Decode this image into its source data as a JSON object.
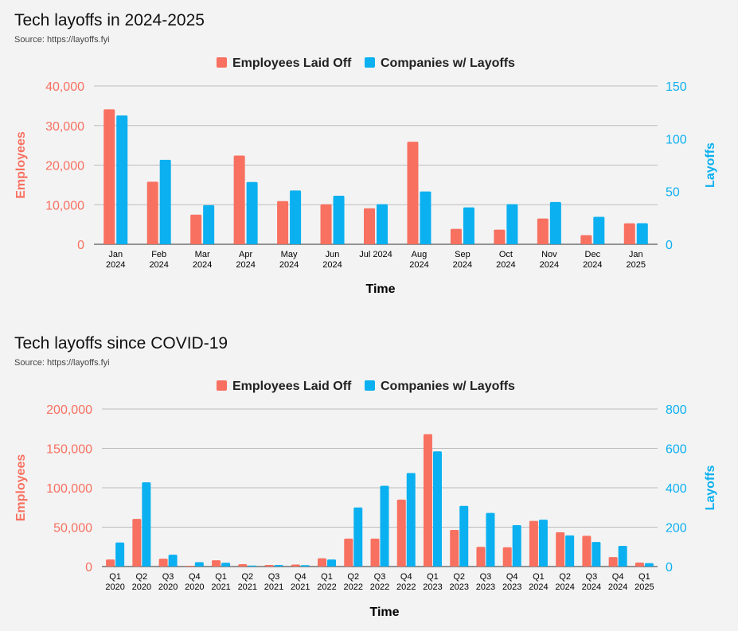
{
  "chart_data": [
    {
      "type": "bar",
      "title": "Tech layoffs in 2024-2025",
      "subtitle": "Source: https://layoffs.fyi",
      "xlabel": "Time",
      "ylabel_left": "Employees",
      "ylabel_right": "Layoffs",
      "ylim_left": [
        0,
        40000
      ],
      "ylim_right": [
        0,
        150
      ],
      "yticks_left": [
        "0",
        "10,000",
        "20,000",
        "30,000",
        "40,000"
      ],
      "yticks_right": [
        "0",
        "50",
        "100",
        "150"
      ],
      "legend_position": "top-center",
      "grid": true,
      "categories": [
        "Jan|2024",
        "Feb|2024",
        "Mar|2024",
        "Apr|2024",
        "May|2024",
        "Jun|2024",
        "Jul 2024",
        "Aug|2024",
        "Sep|2024",
        "Oct|2024",
        "Nov|2024",
        "Dec|2024",
        "Jan|2025"
      ],
      "series": [
        {
          "name": "Employees Laid Off",
          "axis": "left",
          "color": "#f87060",
          "values": [
            34100,
            15800,
            7500,
            22400,
            10900,
            10100,
            9100,
            25900,
            3900,
            3700,
            6500,
            2300,
            5300
          ]
        },
        {
          "name": "Companies w/ Layoffs",
          "axis": "right",
          "color": "#0bb0f0",
          "values": [
            122,
            80,
            37,
            59,
            51,
            46,
            38,
            50,
            35,
            38,
            40,
            26,
            20
          ]
        }
      ]
    },
    {
      "type": "bar",
      "title": "Tech layoffs since COVID-19",
      "subtitle": "Source: https://layoffs.fyi",
      "xlabel": "Time",
      "ylabel_left": "Employees",
      "ylabel_right": "Layoffs",
      "ylim_left": [
        0,
        200000
      ],
      "ylim_right": [
        0,
        800
      ],
      "yticks_left": [
        "0",
        "50,000",
        "100,000",
        "150,000",
        "200,000"
      ],
      "yticks_right": [
        "0",
        "200",
        "400",
        "600",
        "800"
      ],
      "legend_position": "top-center",
      "grid": true,
      "categories": [
        "Q1|2020",
        "Q2|2020",
        "Q3|2020",
        "Q4|2020",
        "Q1|2021",
        "Q2|2021",
        "Q3|2021",
        "Q4|2021",
        "Q1|2022",
        "Q2|2022",
        "Q3|2022",
        "Q4|2022",
        "Q1|2023",
        "Q2|2023",
        "Q3|2023",
        "Q4|2023",
        "Q1|2024",
        "Q2|2024",
        "Q3|2024",
        "Q4|2024",
        "Q1|2025"
      ],
      "series": [
        {
          "name": "Employees Laid Off",
          "axis": "left",
          "color": "#f87060",
          "values": [
            9000,
            60500,
            10000,
            1000,
            8000,
            3000,
            2000,
            2500,
            10500,
            35500,
            35500,
            85000,
            168000,
            46500,
            25000,
            24500,
            58000,
            43500,
            39000,
            12000,
            5000
          ]
        },
        {
          "name": "Companies w/ Layoffs",
          "axis": "right",
          "color": "#0bb0f0",
          "values": [
            122,
            428,
            60,
            22,
            19,
            5,
            8,
            7,
            36,
            300,
            410,
            475,
            585,
            308,
            272,
            210,
            238,
            158,
            125,
            105,
            17
          ]
        }
      ]
    }
  ]
}
